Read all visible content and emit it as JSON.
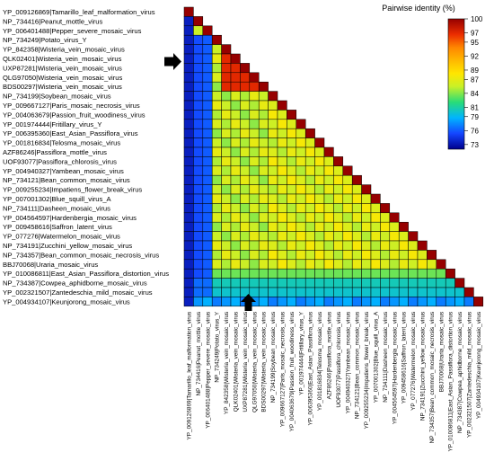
{
  "chart_data": {
    "type": "heatmap",
    "title": "",
    "legend": {
      "title": "Pairwise identity (%)",
      "placement": "top-right",
      "ticks": [
        100,
        97,
        95,
        92,
        89,
        87,
        84,
        81,
        79,
        76,
        73
      ],
      "range": [
        72,
        100
      ]
    },
    "labels": [
      "YP_009126869|Tamarillo_leaf_malformation_virus",
      "NP_734416|Peanut_mottle_virus",
      "YP_006401488|Pepper_severe_mosaic_virus",
      "NP_734249|Potato_virus_Y",
      "YP_842358|Wisteria_vein_mosaic_virus",
      "QLK02401|Wisteria_vein_mosaic_virus",
      "UXP87281|Wisteria_vein_mosaic_virus",
      "QLG97050|Wisteria_vein_mosaic_virus",
      "BDS00297|Wisteria_vein_mosaic_virus",
      "NP_734199|Soybean_mosaic_virus",
      "YP_009667127|Paris_mosaic_necrosis_virus",
      "YP_004063679|Passion_fruit_woodiness_virus",
      "YP_001974444|Fritillary_virus_Y",
      "YP_006395360|East_Asian_Passiflora_virus",
      "YP_001816834|Telosma_mosaic_virus",
      "AZF86246|Passiflora_mottle_virus",
      "UOF93077|Passiflora_chlorosis_virus",
      "YP_004940327|Yambean_mosaic_virus",
      "NP_734121|Bean_common_mosaic_virus",
      "YP_009255234|Impatiens_flower_break_virus",
      "YP_007001302|Blue_squill_virus_A",
      "NP_734111|Dasheen_mosaic_virus",
      "YP_004564597|Hardenbergia_mosaic_virus",
      "YP_009458616|Saffron_latent_virus",
      "YP_077276|Watermelon_mosaic_virus",
      "NP_734191|Zucchini_yellow_mosaic_virus",
      "NP_734357|Bean_common_mosaic_necrosis_virus",
      "BBJ70068|Uraria_mosaic_virus",
      "YP_010086811|East_Asian_Passiflora_distortion_virus",
      "NP_734387|Cowpea_aphidborne_mosaic_virus",
      "YP_002321507|Zantedeschia_mild_mosaic_virus",
      "YP_004934107|Keunjorong_mosaic_virus"
    ],
    "highlighted_label_index": 6,
    "diagonal_value": 100
  }
}
